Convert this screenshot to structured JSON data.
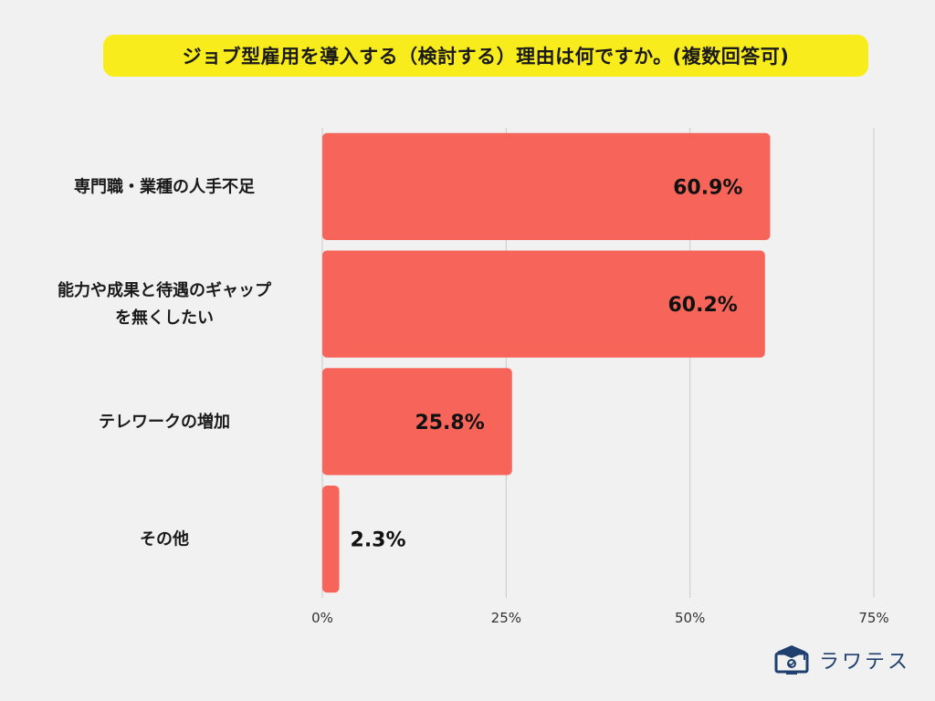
{
  "chart_data": {
    "type": "bar",
    "orientation": "horizontal",
    "title": "ジョブ型雇用を導入する（検討する）理由は何ですか。(複数回答可)",
    "categories": [
      [
        "専門職・業種の人手不足"
      ],
      [
        "能力や成果と待遇のギャップ",
        "を無くしたい"
      ],
      [
        "テレワークの増加"
      ],
      [
        "その他"
      ]
    ],
    "values": [
      60.9,
      60.2,
      25.8,
      2.3
    ],
    "value_labels": [
      "60.9%",
      "60.2%",
      "25.8%",
      "2.3%"
    ],
    "xlim": [
      0,
      75
    ],
    "xticks": [
      0,
      25,
      50,
      75
    ],
    "xtick_labels": [
      "0%",
      "25%",
      "50%",
      "75%"
    ],
    "grid": true,
    "bar_color": "#f7655a",
    "grid_color": "#c9c9c9"
  },
  "brand": {
    "name": "ラワテス",
    "icon": "monitor-graduation-cap-icon",
    "color": "#1f3f6e"
  },
  "colors": {
    "title_bg": "#f9ec1c",
    "background": "#f1f1f1"
  }
}
